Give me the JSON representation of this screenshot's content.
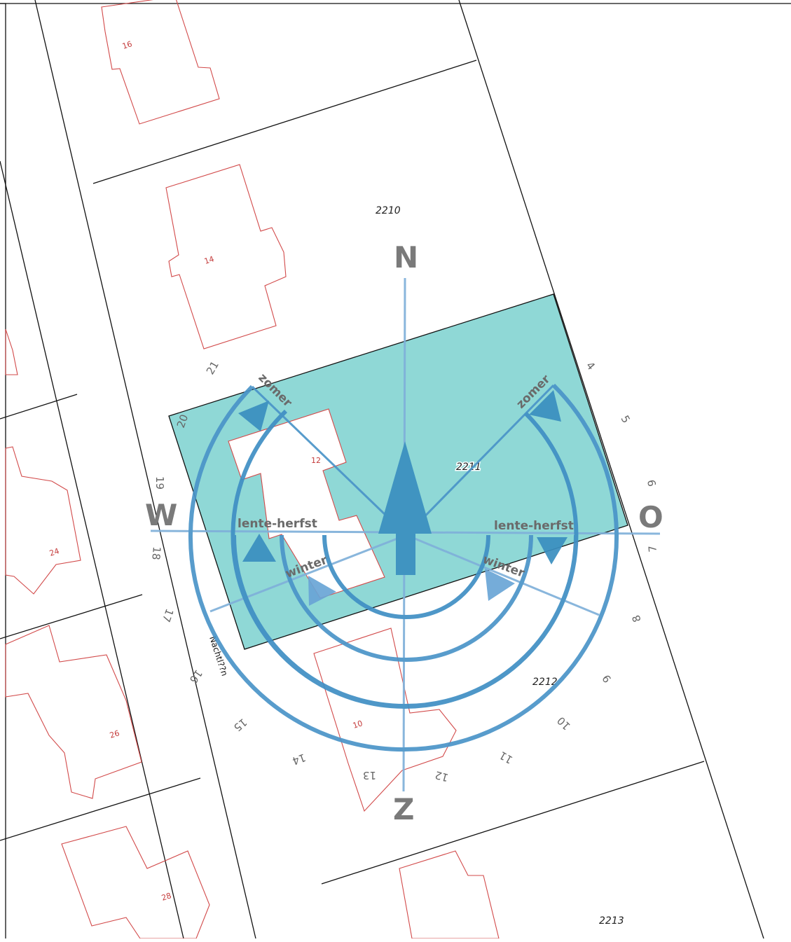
{
  "map": {
    "parcels": [
      "2210",
      "2211",
      "2212",
      "2213"
    ],
    "houses": [
      "16",
      "14",
      "12",
      "24",
      "26",
      "10",
      "28"
    ],
    "street_name": "Nachtl??n",
    "street_numbers": [
      "21",
      "20",
      "19",
      "18",
      "17",
      "16",
      "15",
      "14",
      "13",
      "12",
      "11",
      "10",
      "9",
      "8",
      "7",
      "6",
      "5",
      "4"
    ]
  },
  "compass": {
    "north": "N",
    "south": "Z",
    "west": "W",
    "east": "O"
  },
  "sun_paths": {
    "summer_west": "zomer",
    "summer_east": "zomer",
    "equinox_west": "lente-herfst",
    "equinox_east": "lente-herfst",
    "winter_west": "winter",
    "winter_east": "winter"
  },
  "colors": {
    "highlight_parcel": "#8fd8d6",
    "building_outline": "#d24a4a",
    "sun_arc_dark": "#3f8fc4",
    "sun_arc_light": "#7fb0da",
    "compass_text": "#7a7a7a"
  }
}
